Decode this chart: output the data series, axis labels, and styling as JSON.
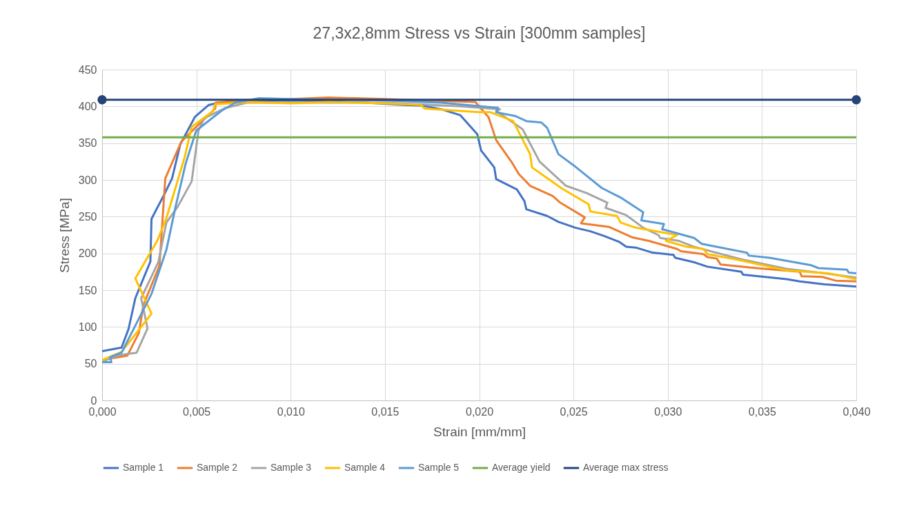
{
  "chart_data": {
    "type": "line",
    "title": "27,3x2,8mm Stress vs Strain [300mm samples]",
    "xlabel": "Strain [mm/mm]",
    "ylabel": "Stress [MPa]",
    "xlim": [
      0,
      0.04
    ],
    "xticks": [
      {
        "value": 0,
        "label": "0,000"
      },
      {
        "value": 0.005,
        "label": "0,005"
      },
      {
        "value": 0.01,
        "label": "0,010"
      },
      {
        "value": 0.015,
        "label": "0,015"
      },
      {
        "value": 0.02,
        "label": "0,020"
      },
      {
        "value": 0.025,
        "label": "0,025"
      },
      {
        "value": 0.03,
        "label": "0,030"
      },
      {
        "value": 0.035,
        "label": "0,035"
      },
      {
        "value": 0.04,
        "label": "0,040"
      }
    ],
    "ylim": [
      0,
      450
    ],
    "yticks": [
      0,
      50,
      100,
      150,
      200,
      250,
      300,
      350,
      400,
      450
    ],
    "grid": true,
    "legend": "bottom",
    "line_style": "solid",
    "series": [
      {
        "name": "Sample 1",
        "color": "#4472c4",
        "x": [
          0,
          0.00103,
          0.0014,
          0.00176,
          0.00256,
          0.00262,
          0.00329,
          0.00371,
          0.00414,
          0.00493,
          0.00566,
          0.0062,
          0.008,
          0.01,
          0.012,
          0.014,
          0.016,
          0.017,
          0.018,
          0.019,
          0.0199,
          0.0201,
          0.0208,
          0.0209,
          0.022,
          0.0224,
          0.0225,
          0.0236,
          0.0242,
          0.0251,
          0.0259,
          0.0266,
          0.0274,
          0.0278,
          0.0283,
          0.0292,
          0.0303,
          0.0304,
          0.0314,
          0.0321,
          0.0339,
          0.034,
          0.0363,
          0.037,
          0.0383,
          0.04
        ],
        "values": [
          67,
          72,
          97,
          139,
          189,
          247,
          280,
          302,
          348,
          386,
          402,
          405,
          407,
          408,
          407,
          405,
          402,
          401,
          396,
          388,
          362,
          340,
          317,
          301,
          287,
          271,
          260,
          251,
          243,
          235,
          230,
          224,
          216,
          209,
          208,
          201,
          198,
          194,
          188,
          182,
          175,
          171,
          165,
          162,
          158,
          155
        ]
      },
      {
        "name": "Sample 2",
        "color": "#ed7d31",
        "x": [
          0,
          0.00134,
          0.00195,
          0.00219,
          0.00304,
          0.00335,
          0.0042,
          0.00487,
          0.006,
          0.00602,
          0.0073,
          0.01,
          0.012,
          0.015,
          0.0198,
          0.0205,
          0.0209,
          0.0217,
          0.0221,
          0.0227,
          0.0239,
          0.0243,
          0.0256,
          0.0254,
          0.0269,
          0.0281,
          0.029,
          0.0305,
          0.0307,
          0.0319,
          0.0321,
          0.0326,
          0.0328,
          0.0347,
          0.037,
          0.0371,
          0.0382,
          0.0389,
          0.04
        ],
        "values": [
          55,
          61,
          92,
          130,
          183,
          302,
          352,
          369,
          397,
          405,
          408,
          410,
          412,
          410,
          406,
          385,
          354,
          325,
          308,
          292,
          278,
          269,
          249,
          241,
          236,
          222,
          217,
          206,
          203,
          199,
          195,
          193,
          185,
          180,
          175,
          169,
          168,
          163,
          162
        ]
      },
      {
        "name": "Sample 3",
        "color": "#a5a5a5",
        "x": [
          0,
          0.00097,
          0.00183,
          0.00241,
          0.00207,
          0.00298,
          0.00341,
          0.00402,
          0.00475,
          0.00511,
          0.00542,
          0.00657,
          0.00767,
          0.01,
          0.015,
          0.019,
          0.0211,
          0.0209,
          0.0223,
          0.0232,
          0.0246,
          0.0257,
          0.0268,
          0.0267,
          0.0278,
          0.0287,
          0.0295,
          0.0296,
          0.0306,
          0.0314,
          0.0339,
          0.0363,
          0.0383,
          0.04
        ],
        "values": [
          53,
          62,
          65,
          98,
          139,
          188,
          242,
          264,
          298,
          367,
          384,
          398,
          405,
          405,
          405,
          400,
          396,
          394,
          369,
          325,
          292,
          282,
          269,
          262,
          252,
          235,
          225,
          221,
          217,
          209,
          192,
          179,
          173,
          167
        ]
      },
      {
        "name": "Sample 4",
        "color": "#ffc000",
        "x": [
          0,
          0.00103,
          0.00262,
          0.00176,
          0.00292,
          0.00341,
          0.00438,
          0.00475,
          0.0059,
          0.00599,
          0.0078,
          0.01,
          0.012,
          0.015,
          0.0169,
          0.0171,
          0.02,
          0.0206,
          0.0218,
          0.0227,
          0.0228,
          0.0244,
          0.0258,
          0.0259,
          0.0273,
          0.0275,
          0.0283,
          0.0305,
          0.0299,
          0.031,
          0.0319,
          0.0321,
          0.0336,
          0.0363,
          0.0385,
          0.0393,
          0.04
        ],
        "values": [
          55,
          66,
          118,
          166,
          217,
          248,
          331,
          372,
          394,
          403,
          406,
          404,
          406,
          404,
          402,
          397,
          392,
          392,
          380,
          335,
          317,
          288,
          267,
          257,
          251,
          242,
          235,
          225,
          217,
          209,
          206,
          199,
          192,
          177,
          173,
          169,
          165
        ]
      },
      {
        "name": "Sample 5",
        "color": "#5b9bd5",
        "x": [
          0,
          0.00049,
          0.00043,
          0.00103,
          0.00262,
          0.00341,
          0.0039,
          0.00444,
          0.00499,
          0.00633,
          0.00706,
          0.00828,
          0.01,
          0.015,
          0.018,
          0.021,
          0.0209,
          0.0219,
          0.0225,
          0.0233,
          0.0236,
          0.0242,
          0.0251,
          0.0265,
          0.0275,
          0.0287,
          0.0286,
          0.0298,
          0.0297,
          0.0314,
          0.0318,
          0.0324,
          0.0342,
          0.0343,
          0.0354,
          0.0376,
          0.038,
          0.0395,
          0.0396,
          0.04
        ],
        "values": [
          52,
          52,
          59,
          65,
          145,
          205,
          264,
          323,
          367,
          394,
          405,
          411,
          410,
          408,
          405,
          398,
          392,
          387,
          380,
          378,
          371,
          335,
          318,
          289,
          276,
          256,
          245,
          240,
          233,
          221,
          213,
          210,
          201,
          197,
          194,
          184,
          180,
          178,
          174,
          173
        ]
      },
      {
        "name": "Average yield",
        "color": "#70ad47",
        "x": [
          0,
          0.04
        ],
        "values": [
          358,
          358
        ]
      },
      {
        "name": "Average max stress",
        "color": "#264478",
        "marker": "circle",
        "x": [
          0,
          0.04
        ],
        "values": [
          409,
          409
        ]
      }
    ]
  }
}
